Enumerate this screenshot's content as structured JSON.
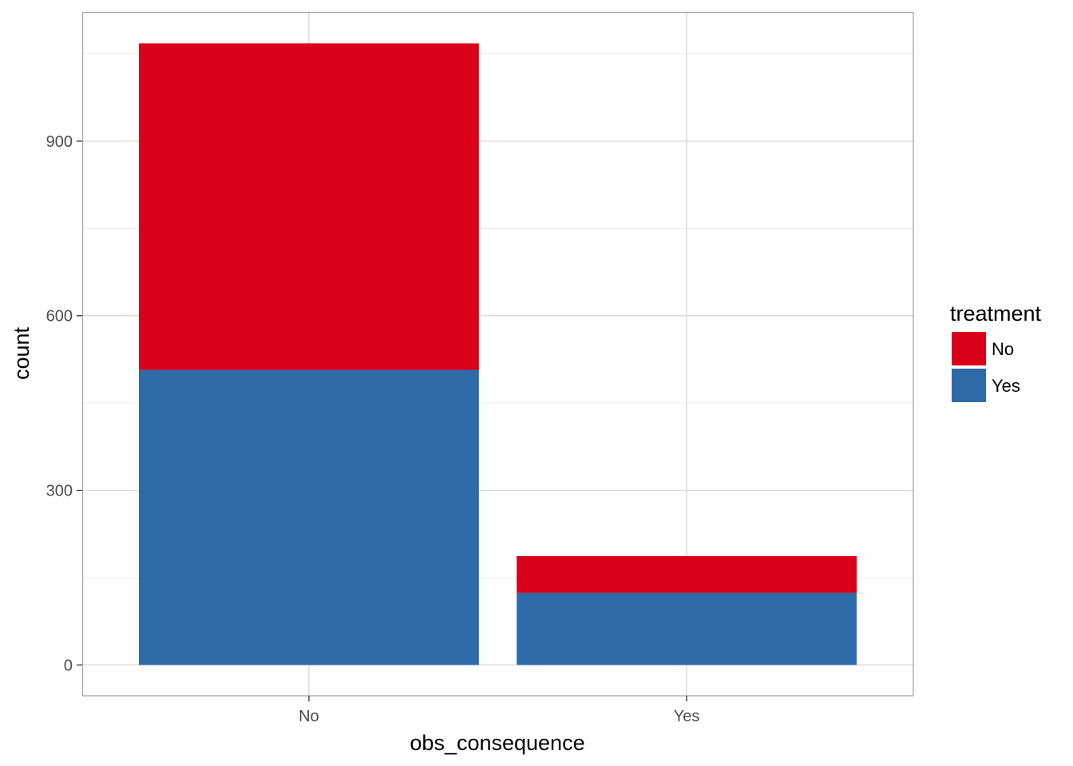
{
  "chart_data": {
    "type": "bar",
    "stacked": true,
    "categories": [
      "No",
      "Yes"
    ],
    "series": [
      {
        "name": "No",
        "values": [
          561,
          63
        ],
        "color": "#DA001A"
      },
      {
        "name": "Yes",
        "values": [
          507,
          124
        ],
        "color": "#2E6BA8"
      }
    ],
    "xlabel": "obs_consequence",
    "ylabel": "count",
    "ylim": [
      -53,
      1122
    ],
    "yticks": [
      0,
      300,
      600,
      900
    ],
    "y_minor_ticks": [
      150,
      450,
      750,
      1050
    ],
    "legend": {
      "title": "treatment",
      "position": "right"
    },
    "grid": true
  }
}
